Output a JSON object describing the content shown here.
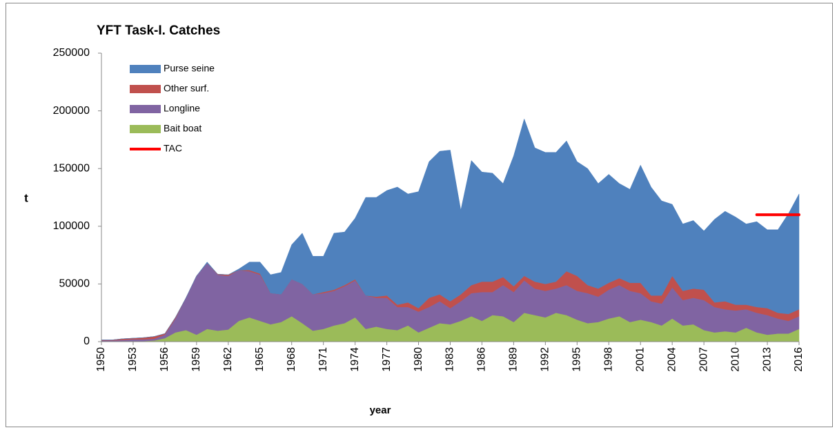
{
  "chart_data": {
    "type": "stacked-area",
    "title": "YFT Task-I. Catches",
    "xlabel": "year",
    "ylabel": "t",
    "x": [
      1950,
      1951,
      1952,
      1953,
      1954,
      1955,
      1956,
      1957,
      1958,
      1959,
      1960,
      1961,
      1962,
      1963,
      1964,
      1965,
      1966,
      1967,
      1968,
      1969,
      1970,
      1971,
      1972,
      1973,
      1974,
      1975,
      1976,
      1977,
      1978,
      1979,
      1980,
      1981,
      1982,
      1983,
      1984,
      1985,
      1986,
      1987,
      1988,
      1989,
      1990,
      1991,
      1992,
      1993,
      1994,
      1995,
      1996,
      1997,
      1998,
      1999,
      2000,
      2001,
      2002,
      2003,
      2004,
      2005,
      2006,
      2007,
      2008,
      2009,
      2010,
      2011,
      2012,
      2013,
      2014,
      2015,
      2016
    ],
    "xlim": [
      1950,
      2016
    ],
    "xticks": [
      1950,
      1953,
      1956,
      1959,
      1962,
      1965,
      1968,
      1971,
      1974,
      1977,
      1980,
      1983,
      1986,
      1989,
      1992,
      1995,
      1998,
      2001,
      2004,
      2007,
      2010,
      2013,
      2016
    ],
    "ylim": [
      0,
      250000
    ],
    "yticks": [
      0,
      50000,
      100000,
      150000,
      200000,
      250000
    ],
    "grid": false,
    "legend": "upper-left",
    "series": [
      {
        "name": "Bait boat",
        "color": "#9bbb59",
        "values": [
          0,
          0,
          500,
          500,
          500,
          1000,
          3000,
          8000,
          10000,
          6000,
          11000,
          9500,
          10500,
          18000,
          21000,
          18000,
          15000,
          17000,
          22000,
          16000,
          9500,
          11000,
          14000,
          16000,
          21000,
          11000,
          13000,
          11000,
          10000,
          14000,
          8000,
          12000,
          16000,
          15000,
          18000,
          22000,
          18000,
          23000,
          22000,
          17000,
          25000,
          23000,
          21000,
          25000,
          23000,
          19000,
          16000,
          17000,
          20000,
          22000,
          17000,
          19000,
          17000,
          14000,
          20000,
          14000,
          15000,
          10000,
          8000,
          9000,
          8000,
          12000,
          8000,
          6000,
          7000,
          7000,
          11000
        ]
      },
      {
        "name": "Longline",
        "color": "#8064a2",
        "values": [
          1000,
          1000,
          1000,
          1500,
          1500,
          1500,
          3000,
          12000,
          28000,
          51000,
          57000,
          48500,
          46500,
          44000,
          40000,
          40000,
          27000,
          24000,
          32000,
          34000,
          31500,
          31000,
          30000,
          32000,
          32000,
          29000,
          25000,
          27000,
          20000,
          16000,
          18000,
          18000,
          19000,
          14000,
          17000,
          20000,
          25000,
          20000,
          27000,
          26000,
          28000,
          23000,
          23000,
          21000,
          26000,
          25000,
          26000,
          22000,
          25000,
          27000,
          27000,
          23000,
          18000,
          19000,
          27000,
          22000,
          23000,
          26000,
          22000,
          19000,
          19000,
          16000,
          17000,
          17000,
          13000,
          11000,
          11000
        ]
      },
      {
        "name": "Other surf.",
        "color": "#c0504d",
        "values": [
          500,
          500,
          1000,
          1000,
          1500,
          2000,
          1000,
          1000,
          0,
          0,
          0,
          500,
          1000,
          0,
          1000,
          1000,
          0,
          0,
          0,
          0,
          0,
          1000,
          1000,
          1000,
          1000,
          0,
          1000,
          2000,
          2000,
          4000,
          3000,
          8000,
          6000,
          6000,
          6000,
          7000,
          9000,
          9000,
          7000,
          5000,
          4000,
          6000,
          6000,
          6000,
          12000,
          13000,
          7000,
          7000,
          6000,
          6000,
          7000,
          9000,
          5000,
          7000,
          10000,
          8000,
          8000,
          9000,
          4000,
          7000,
          5000,
          4000,
          5000,
          6000,
          5000,
          6000,
          6000
        ]
      },
      {
        "name": "Purse seine",
        "color": "#4f81bd",
        "values": [
          0,
          0,
          0,
          0,
          0,
          0,
          0,
          0,
          0,
          0,
          1000,
          0,
          0,
          1000,
          7000,
          10000,
          16000,
          19000,
          30000,
          44000,
          33000,
          31000,
          49000,
          46000,
          53000,
          85000,
          86000,
          91000,
          102000,
          94000,
          101000,
          118000,
          124000,
          131000,
          73000,
          108000,
          95000,
          94000,
          81000,
          113000,
          136000,
          116000,
          114000,
          112000,
          113000,
          99000,
          101000,
          91000,
          94000,
          82000,
          81000,
          102000,
          94000,
          82000,
          62000,
          58000,
          59000,
          51000,
          72000,
          78000,
          76000,
          70000,
          74000,
          68000,
          72000,
          87000,
          100000
        ]
      }
    ],
    "tac": {
      "name": "TAC",
      "color": "#ff0000",
      "x": [
        2012,
        2016
      ],
      "values": [
        110000,
        110000
      ]
    }
  }
}
